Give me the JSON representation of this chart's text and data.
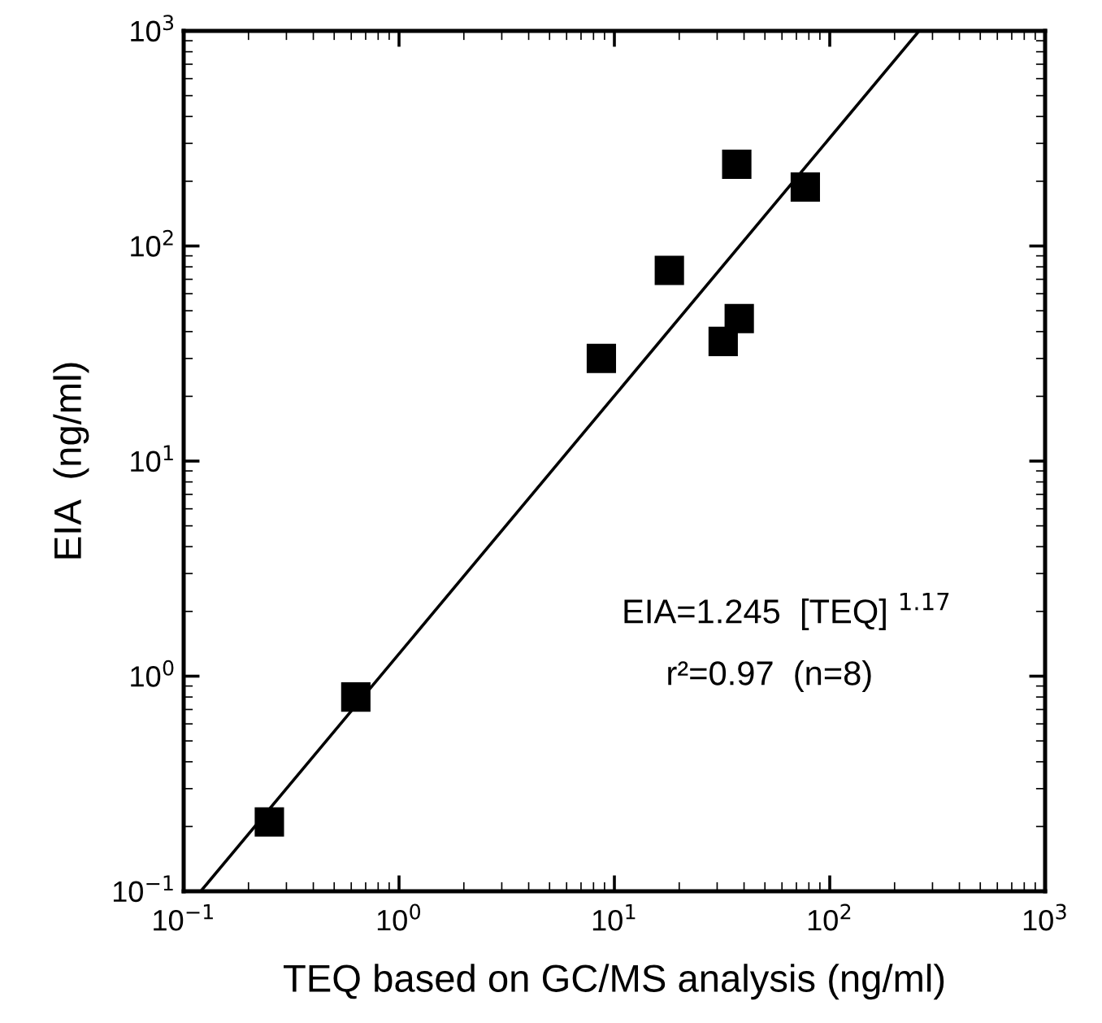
{
  "chart_data": {
    "type": "scatter",
    "xlabel": "TEQ based on GC/MS analysis (ng/ml)",
    "ylabel": "EIA  (ng/ml)",
    "log": "xy",
    "grid": false,
    "marker": "square",
    "xlim": [
      0.1,
      1000
    ],
    "ylim": [
      0.1,
      1000
    ],
    "xticks": [
      {
        "value": 0.1,
        "label": "10$^{−1}$"
      },
      {
        "value": 1,
        "label": "10$^{0}$"
      },
      {
        "value": 10,
        "label": "10$^{1}$"
      },
      {
        "value": 100,
        "label": "10$^{2}$"
      },
      {
        "value": 1000,
        "label": "10$^{3}$"
      }
    ],
    "yticks": [
      {
        "value": 0.1,
        "label": "10$^{−1}$"
      },
      {
        "value": 1,
        "label": "10$^{0}$"
      },
      {
        "value": 10,
        "label": "10$^{1}$"
      },
      {
        "value": 100,
        "label": "10$^{2}$"
      },
      {
        "value": 1000,
        "label": "10$^{3}$"
      }
    ],
    "series": [
      {
        "color": "#000000",
        "x": [
          0.25,
          0.63,
          8.7,
          18,
          32,
          38,
          37,
          77
        ],
        "values": [
          0.21,
          0.8,
          30,
          77,
          36,
          46,
          240,
          188
        ]
      },
      {
        "type": "line",
        "color": "#000000",
        "marker": "none",
        "line_style": "solid",
        "x": [
          0.12,
          260
        ],
        "values": [
          0.1,
          1000
        ]
      }
    ],
    "annotations": [
      {
        "text": "EIA=1.245  [TEQ] $^{1.17}$"
      },
      {
        "text": "r²=0.97  (n=8)"
      }
    ]
  }
}
